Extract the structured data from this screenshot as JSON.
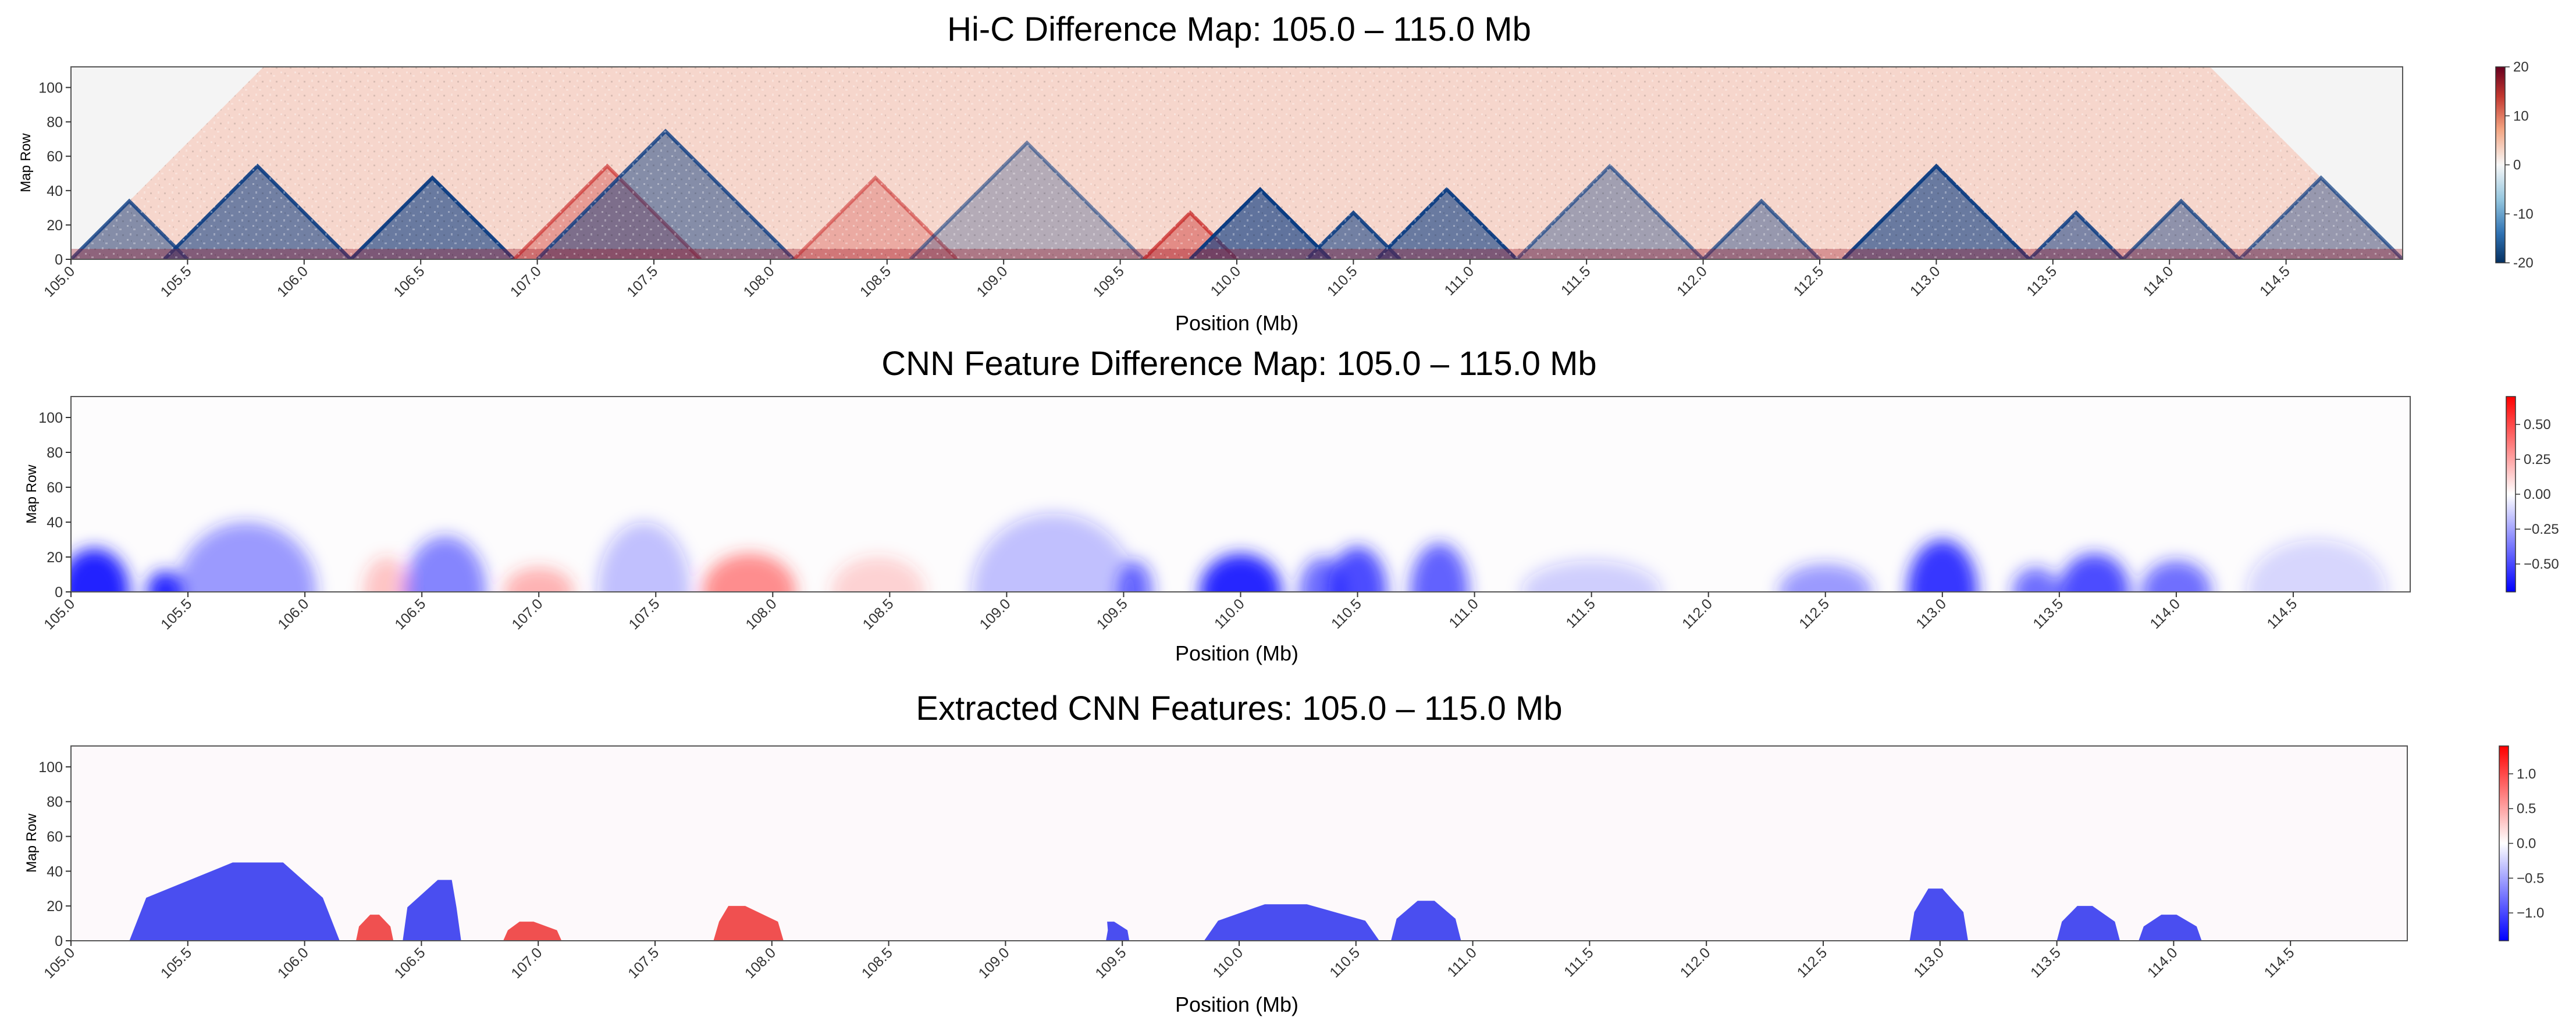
{
  "figure": {
    "colors": {
      "positive": "#c81e1e",
      "negative": "#0b3c82",
      "feat_red": "#f05050",
      "feat_blue": "#4a4ef0"
    }
  },
  "chart_data": [
    {
      "type": "heatmap",
      "title": "Hi-C Difference Map: 105.0 – 115.0 Mb",
      "xlabel": "Position (Mb)",
      "ylabel": "Map Row",
      "xlim": [
        105.0,
        115.0
      ],
      "ylim": [
        0,
        112
      ],
      "xticks": [
        "105.0",
        "105.5",
        "106.0",
        "106.5",
        "107.0",
        "107.5",
        "108.0",
        "108.5",
        "109.0",
        "109.5",
        "110.0",
        "110.5",
        "111.0",
        "111.5",
        "112.0",
        "112.5",
        "113.0",
        "113.5",
        "114.0",
        "114.5"
      ],
      "yticks": [
        "0",
        "20",
        "40",
        "60",
        "80",
        "100"
      ],
      "colorbar": {
        "min": -20,
        "max": 20,
        "ticks": [
          "20",
          "10",
          "0",
          "-10",
          "-20"
        ],
        "colormap": "RdBu_r"
      },
      "triangle_top_row": 112,
      "domains": [
        {
          "start": 105.0,
          "end": 105.5,
          "value": -12
        },
        {
          "start": 105.4,
          "end": 106.2,
          "value": -14
        },
        {
          "start": 106.2,
          "end": 106.9,
          "value": -15
        },
        {
          "start": 106.9,
          "end": 107.7,
          "value": 8
        },
        {
          "start": 107.0,
          "end": 108.1,
          "value": -12
        },
        {
          "start": 108.1,
          "end": 108.8,
          "value": 6
        },
        {
          "start": 108.6,
          "end": 109.6,
          "value": -7
        },
        {
          "start": 109.6,
          "end": 110.0,
          "value": 10
        },
        {
          "start": 109.8,
          "end": 110.4,
          "value": -16
        },
        {
          "start": 110.3,
          "end": 110.7,
          "value": -14
        },
        {
          "start": 110.6,
          "end": 111.2,
          "value": -15
        },
        {
          "start": 111.2,
          "end": 112.0,
          "value": -9
        },
        {
          "start": 112.0,
          "end": 112.5,
          "value": -10
        },
        {
          "start": 112.6,
          "end": 113.4,
          "value": -15
        },
        {
          "start": 113.4,
          "end": 113.8,
          "value": -13
        },
        {
          "start": 113.8,
          "end": 114.3,
          "value": -11
        },
        {
          "start": 114.3,
          "end": 115.0,
          "value": -10
        }
      ]
    },
    {
      "type": "heatmap",
      "title": "CNN Feature Difference Map: 105.0 – 115.0 Mb",
      "xlabel": "Position (Mb)",
      "ylabel": "Map Row",
      "xlim": [
        105.0,
        115.0
      ],
      "ylim": [
        0,
        112
      ],
      "xticks": [
        "105.0",
        "105.5",
        "106.0",
        "106.5",
        "107.0",
        "107.5",
        "108.0",
        "108.5",
        "109.0",
        "109.5",
        "110.0",
        "110.5",
        "111.0",
        "111.5",
        "112.0",
        "112.5",
        "113.0",
        "113.5",
        "114.0",
        "114.5"
      ],
      "yticks": [
        "0",
        "20",
        "40",
        "60",
        "80",
        "100"
      ],
      "colorbar": {
        "min": -0.7,
        "max": 0.7,
        "ticks": [
          "0.50",
          "0.25",
          "0.00",
          "−0.25",
          "−0.50"
        ],
        "colormap": "bwr"
      },
      "blobs": [
        {
          "center": 105.1,
          "width": 0.3,
          "height": 25,
          "value": -0.65
        },
        {
          "center": 105.4,
          "width": 0.15,
          "height": 12,
          "value": -0.55
        },
        {
          "center": 105.75,
          "width": 0.6,
          "height": 40,
          "value": -0.25
        },
        {
          "center": 106.35,
          "width": 0.2,
          "height": 20,
          "value": 0.15
        },
        {
          "center": 106.6,
          "width": 0.35,
          "height": 32,
          "value": -0.3
        },
        {
          "center": 107.0,
          "width": 0.3,
          "height": 14,
          "value": 0.2
        },
        {
          "center": 107.45,
          "width": 0.4,
          "height": 40,
          "value": -0.15
        },
        {
          "center": 107.9,
          "width": 0.4,
          "height": 22,
          "value": 0.3
        },
        {
          "center": 108.45,
          "width": 0.4,
          "height": 20,
          "value": 0.12
        },
        {
          "center": 109.2,
          "width": 0.7,
          "height": 45,
          "value": -0.15
        },
        {
          "center": 109.55,
          "width": 0.15,
          "height": 18,
          "value": -0.35
        },
        {
          "center": 110.0,
          "width": 0.35,
          "height": 22,
          "value": -0.55
        },
        {
          "center": 110.35,
          "width": 0.2,
          "height": 20,
          "value": -0.35
        },
        {
          "center": 110.5,
          "width": 0.25,
          "height": 26,
          "value": -0.45
        },
        {
          "center": 110.85,
          "width": 0.25,
          "height": 28,
          "value": -0.4
        },
        {
          "center": 111.5,
          "width": 0.6,
          "height": 18,
          "value": -0.12
        },
        {
          "center": 112.5,
          "width": 0.4,
          "height": 16,
          "value": -0.25
        },
        {
          "center": 113.0,
          "width": 0.3,
          "height": 30,
          "value": -0.5
        },
        {
          "center": 113.4,
          "width": 0.2,
          "height": 14,
          "value": -0.35
        },
        {
          "center": 113.65,
          "width": 0.3,
          "height": 22,
          "value": -0.45
        },
        {
          "center": 114.0,
          "width": 0.3,
          "height": 18,
          "value": -0.35
        },
        {
          "center": 114.6,
          "width": 0.6,
          "height": 30,
          "value": -0.1
        }
      ]
    },
    {
      "type": "heatmap",
      "title": "Extracted CNN Features: 105.0 – 115.0 Mb",
      "xlabel": "Position (Mb)",
      "ylabel": "Map Row",
      "xlim": [
        105.0,
        115.0
      ],
      "ylim": [
        0,
        112
      ],
      "xticks": [
        "105.0",
        "105.5",
        "106.0",
        "106.5",
        "107.0",
        "107.5",
        "108.0",
        "108.5",
        "109.0",
        "109.5",
        "110.0",
        "110.5",
        "111.0",
        "111.5",
        "112.0",
        "112.5",
        "113.0",
        "113.5",
        "114.0",
        "114.5"
      ],
      "yticks": [
        "0",
        "20",
        "40",
        "60",
        "80",
        "100"
      ],
      "colorbar": {
        "min": -1.4,
        "max": 1.4,
        "ticks": [
          "1.0",
          "0.5",
          "0.0",
          "−0.5",
          "−1.0"
        ],
        "colormap": "bwr"
      },
      "features": [
        {
          "x0": 105.25,
          "x1": 106.15,
          "peak": 105.8,
          "height": 45,
          "value": -1
        },
        {
          "x0": 106.22,
          "x1": 106.38,
          "peak": 106.3,
          "height": 15,
          "value": 1
        },
        {
          "x0": 106.42,
          "x1": 106.67,
          "peak": 106.6,
          "height": 35,
          "value": -1
        },
        {
          "x0": 106.85,
          "x1": 107.1,
          "peak": 106.95,
          "height": 11,
          "value": 1
        },
        {
          "x0": 107.75,
          "x1": 108.05,
          "peak": 107.85,
          "height": 20,
          "value": 1
        },
        {
          "x0": 109.43,
          "x1": 109.53,
          "peak": 109.45,
          "height": 11,
          "value": -1
        },
        {
          "x0": 109.85,
          "x1": 110.6,
          "peak": 110.2,
          "height": 21,
          "value": -1
        },
        {
          "x0": 110.65,
          "x1": 110.95,
          "peak": 110.8,
          "height": 23,
          "value": -1
        },
        {
          "x0": 112.87,
          "x1": 113.12,
          "peak": 112.98,
          "height": 30,
          "value": -1
        },
        {
          "x0": 113.5,
          "x1": 113.77,
          "peak": 113.62,
          "height": 20,
          "value": -1
        },
        {
          "x0": 113.85,
          "x1": 114.12,
          "peak": 113.98,
          "height": 15,
          "value": -1
        }
      ]
    }
  ]
}
